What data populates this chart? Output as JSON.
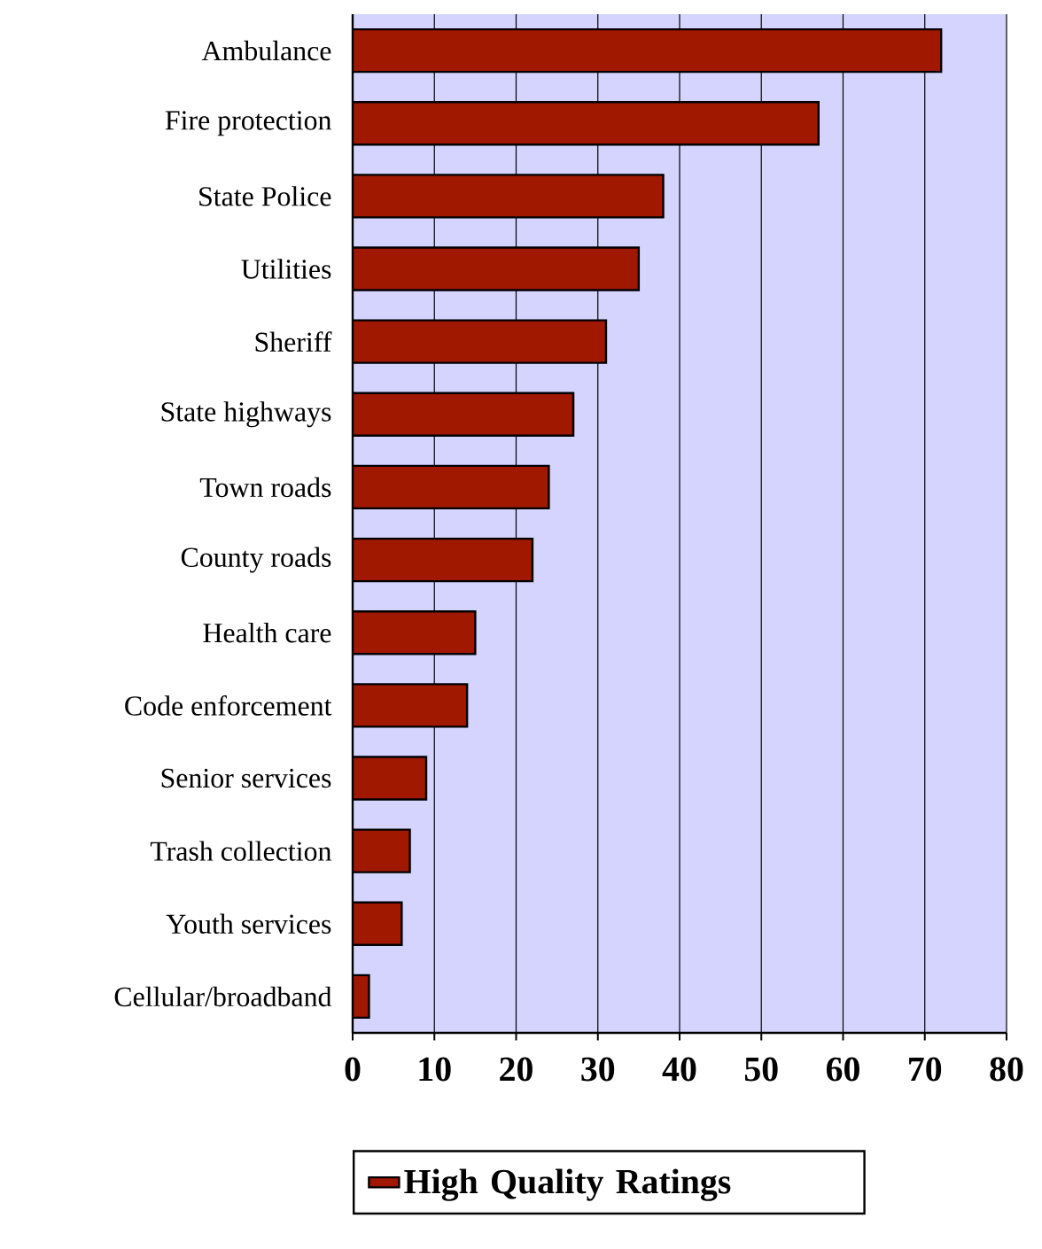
{
  "chart_data": {
    "type": "bar",
    "orientation": "horizontal",
    "categories": [
      "Ambulance",
      "Fire protection",
      "State Police",
      "Utilities",
      "Sheriff",
      "State highways",
      "Town roads",
      "County roads",
      "Health care",
      "Code enforcement",
      "Senior services",
      "Trash collection",
      "Youth services",
      "Cellular/broadband"
    ],
    "series": [
      {
        "name": "High Quality Ratings",
        "color": "#a01800",
        "values": [
          72,
          57,
          38,
          35,
          31,
          27,
          24,
          22,
          15,
          14,
          9,
          7,
          6,
          2
        ]
      }
    ],
    "xlim": [
      0,
      80
    ],
    "xticks": [
      0,
      10,
      20,
      30,
      40,
      50,
      60,
      70,
      80
    ],
    "grid": "x",
    "legend": "bottom"
  }
}
